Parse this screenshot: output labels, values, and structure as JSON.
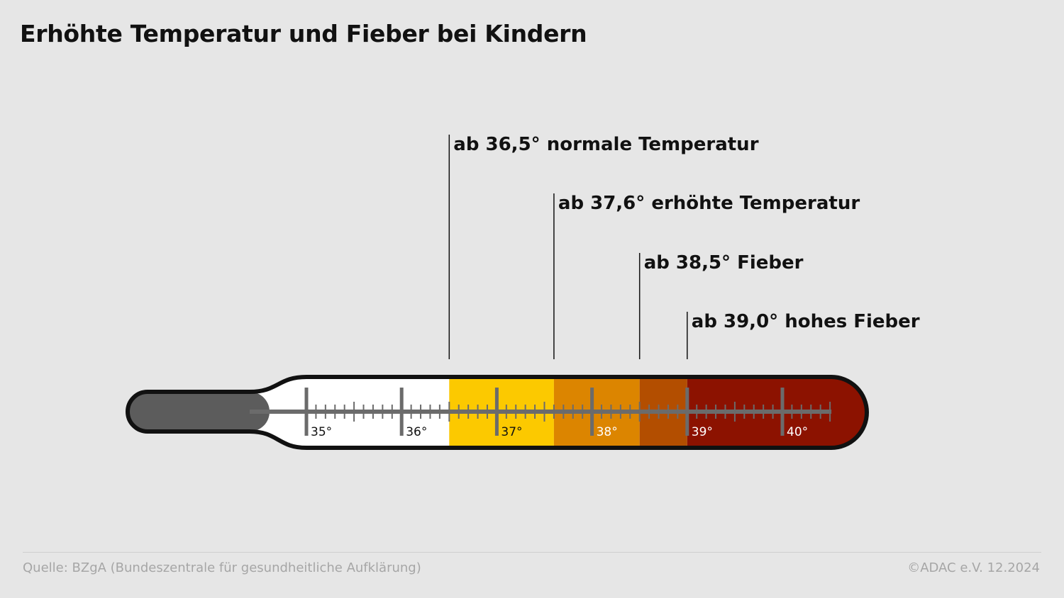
{
  "title": "Erhöhte Temperatur und Fieber bei Kindern",
  "thermometer": {
    "scale_min": 35,
    "scale_max": 40.5,
    "major_ticks": [
      {
        "value": 35,
        "label": "35°"
      },
      {
        "value": 36,
        "label": "36°"
      },
      {
        "value": 37,
        "label": "37°"
      },
      {
        "value": 38,
        "label": "38°"
      },
      {
        "value": 39,
        "label": "39°"
      },
      {
        "value": 40,
        "label": "40°"
      }
    ],
    "half_ticks": [
      35.5,
      36.5,
      37.5,
      38.5,
      39.5,
      40.5
    ],
    "minor_step": 0.1,
    "bulb_color": "#5c5c5c",
    "scale_color": "#6b6b6b",
    "zones": [
      {
        "from": 35,
        "to": 36.5,
        "color": "#ffffff"
      },
      {
        "from": 36.5,
        "to": 37.6,
        "color": "#fcc900"
      },
      {
        "from": 37.6,
        "to": 38.5,
        "color": "#dc8500"
      },
      {
        "from": 38.5,
        "to": 39.0,
        "color": "#b34e00"
      },
      {
        "from": 39.0,
        "to": 40.5,
        "color": "#8c1200"
      }
    ]
  },
  "thresholds": [
    {
      "value": 36.5,
      "label": "ab 36,5° normale Temperatur"
    },
    {
      "value": 37.6,
      "label": "ab 37,6° erhöhte Temperatur"
    },
    {
      "value": 38.5,
      "label": "ab 38,5° Fieber"
    },
    {
      "value": 39.0,
      "label": "ab 39,0° hohes Fieber"
    }
  ],
  "footer": {
    "source": "Quelle: BZgA (Bundeszentrale für gesundheitliche Aufklärung)",
    "credit": "©ADAC e.V.  12.2024"
  }
}
